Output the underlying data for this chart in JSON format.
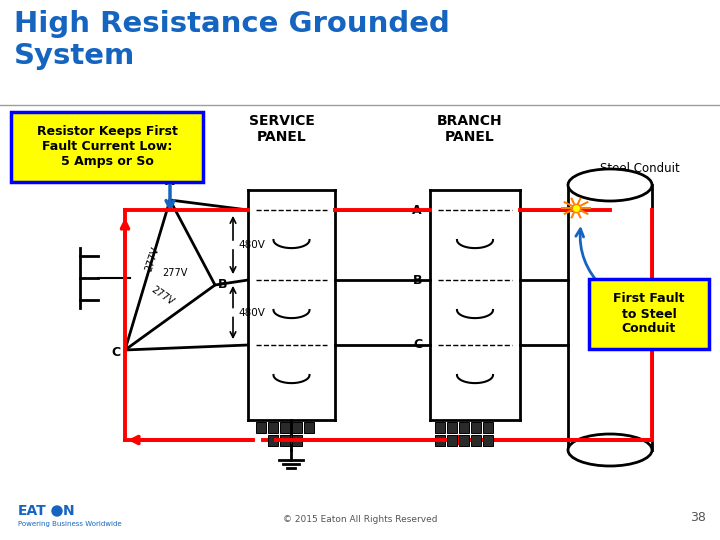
{
  "title_line1": "High Resistance Grounded",
  "title_line2": "System",
  "title_color": "#1565C0",
  "bg_color": "#FFFFFF",
  "separator_color": "#9E9E9E",
  "yellow_box_text": "Resistor Keeps First\nFault Current Low:\n5 Amps or So",
  "yellow_box_bg": "#FFFF00",
  "yellow_box_border": "#0000FF",
  "yellow_box_text_color": "#000000",
  "service_panel_label": "SERVICE\nPANEL",
  "branch_panel_label": "BRANCH\nPANEL",
  "steel_conduit_label": "Steel Conduit",
  "first_fault_label": "First Fault\nto Steel\nConduit",
  "first_fault_bg": "#FFFF00",
  "first_fault_border": "#0000FF",
  "copyright_text": "© 2015 Eaton All Rights Reserved",
  "page_number": "38",
  "diagram_line_color": "#000000",
  "fault_path_color": "#FF0000",
  "arrow_blue": "#1565C0"
}
